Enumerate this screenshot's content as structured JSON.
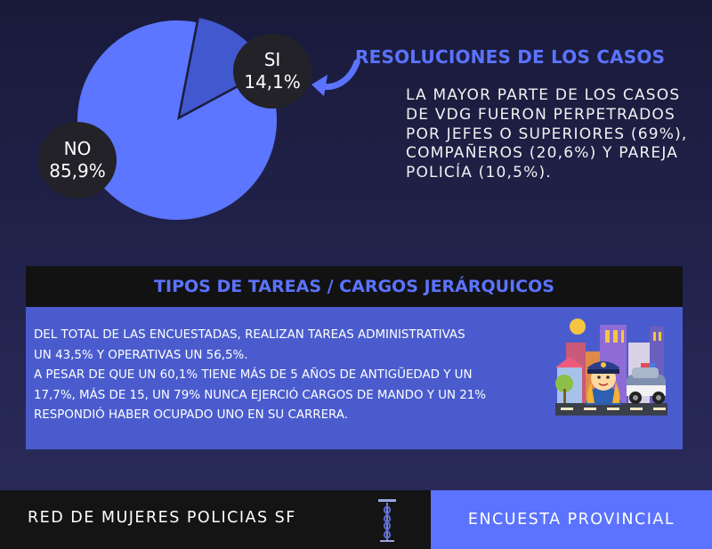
{
  "chart_data": {
    "type": "pie",
    "categories": [
      "SI",
      "NO"
    ],
    "values": [
      14.1,
      85.9
    ],
    "value_labels": [
      "14,1%",
      "85,9%"
    ],
    "colors": [
      "#4158cf",
      "#5c76ff"
    ]
  },
  "resolutions": {
    "title": "RESOLUCIONES DE LOS CASOS",
    "text": "LA MAYOR PARTE DE LOS CASOS DE VDG FUERON PERPETRADOS POR JEFES O SUPERIORES (69%), COMPAÑEROS (20,6%) Y PAREJA POLICÍA (10,5%)."
  },
  "tasks": {
    "title": "TIPOS DE TAREAS / CARGOS JERÁRQUICOS",
    "lines": [
      "DEL TOTAL DE LAS ENCUESTADAS, REALIZAN TAREAS ADMINISTRATIVAS",
      "UN  43,5% Y OPERATIVAS UN 56,5%.",
      "A PESAR DE QUE UN 60,1% TIENE MÁS DE 5 AÑOS DE ANTIGÜEDAD Y UN",
      "17,7%, MÁS DE 15, UN 79% NUNCA EJERCIÓ CARGOS DE MANDO Y UN 21%",
      "RESPONDIÓ HABER OCUPADO UNO EN SU CARRERA."
    ],
    "illustration_icon": "policewoman-city-illustration"
  },
  "footer": {
    "org": "RED DE MUJERES POLICIAS SF",
    "survey": "ENCUESTA PROVINCIAL",
    "logo_icon": "caduceus-logo-icon"
  },
  "colors": {
    "accent": "#5b73ff",
    "panel": "#4a5ccd",
    "dark": "#121213",
    "bubble": "#222228"
  }
}
